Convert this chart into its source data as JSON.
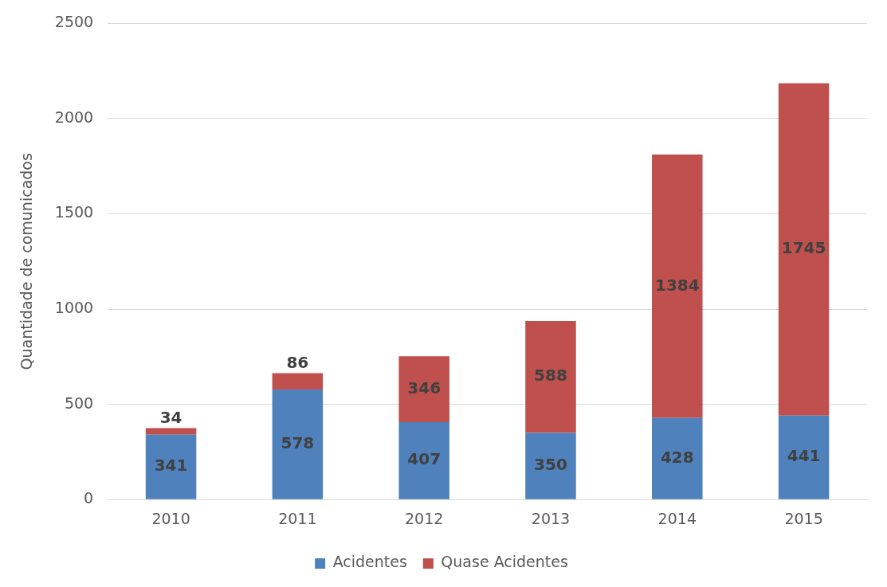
{
  "chart_data": {
    "type": "bar",
    "ylabel": "Quantidade de comunicados",
    "categories": [
      "2010",
      "2011",
      "2012",
      "2013",
      "2014",
      "2015"
    ],
    "series": [
      {
        "name": "Acidentes",
        "color": "#4f81bd",
        "values": [
          341,
          578,
          407,
          350,
          428,
          441
        ]
      },
      {
        "name": "Quase Acidentes",
        "color": "#c0504d",
        "values": [
          34,
          86,
          346,
          588,
          1384,
          1745
        ]
      }
    ],
    "stacked": true,
    "ylim": [
      0,
      2500
    ],
    "yticks": [
      0,
      500,
      1000,
      1500,
      2000,
      2500
    ],
    "grid": "y",
    "legend": "bottom",
    "data_labels": true
  }
}
